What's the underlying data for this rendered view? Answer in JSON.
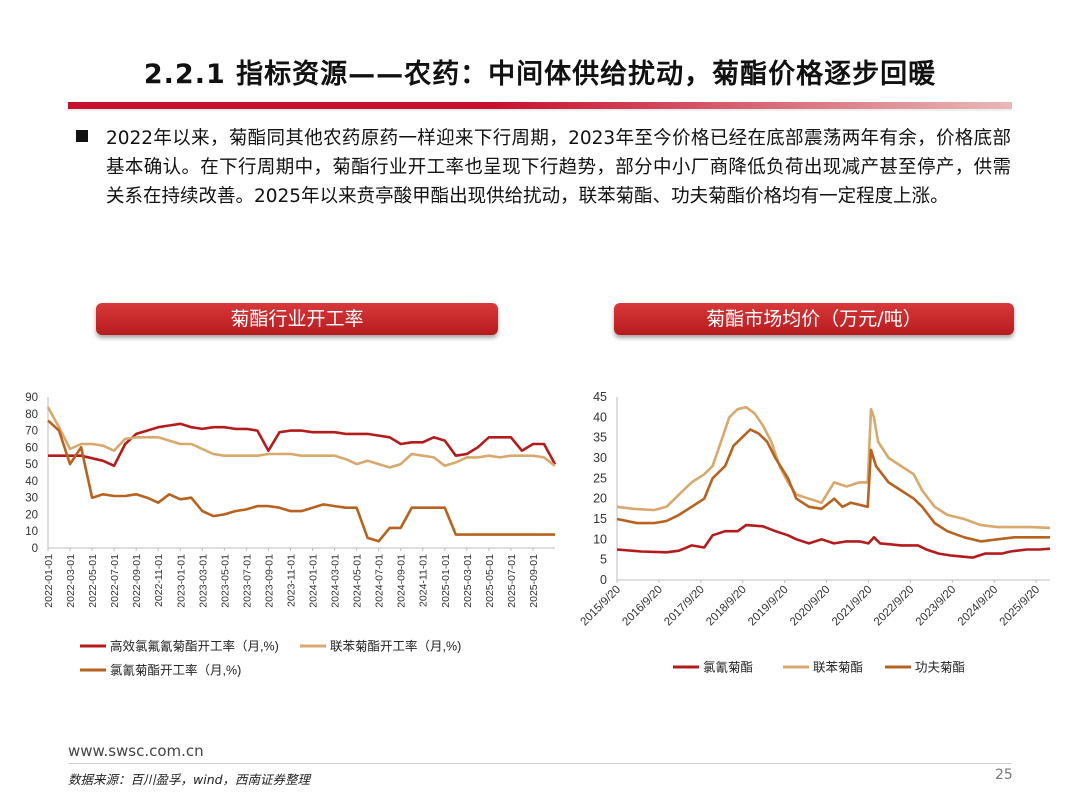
{
  "title": "2.2.1 指标资源——农药：中间体供给扰动，菊酯价格逐步回暖",
  "bullet": "2022年以来，菊酯同其他农药原药一样迎来下行周期，2023年至今价格已经在底部震荡两年有余，价格底部基本确认。在下行周期中，菊酯行业开工率也呈现下行趋势，部分中小厂商降低负荷出现减产甚至停产，供需关系在持续改善。2025年以来贲亭酸甲酯出现供给扰动，联苯菊酯、功夫菊酯价格均有一定程度上涨。",
  "footer": {
    "url": "www.swsc.com.cn",
    "source": "数据来源：百川盈孚，wind，西南证券整理",
    "page": "25"
  },
  "colors": {
    "red": "#b41c1c",
    "gold": "#d9a86c",
    "brown": "#b8621f"
  },
  "chart_data": [
    {
      "type": "line",
      "title": "菊酯行业开工率",
      "ylim": [
        0,
        90
      ],
      "yticks": [
        "0",
        "10",
        "20",
        "30",
        "40",
        "50",
        "60",
        "70",
        "80",
        "90"
      ],
      "xticks": [
        "2022-01-01",
        "2022-03-01",
        "2022-05-01",
        "2022-07-01",
        "2022-09-01",
        "2022-11-01",
        "2023-01-01",
        "2023-03-01",
        "2023-05-01",
        "2023-07-01",
        "2023-09-01",
        "2023-11-01",
        "2024-01-01",
        "2024-03-01",
        "2024-05-01",
        "2024-07-01",
        "2024-09-01",
        "2024-11-01",
        "2025-01-01",
        "2025-03-01",
        "2025-05-01",
        "2025-07-01",
        "2025-09-01"
      ],
      "x_months": 45,
      "series": [
        {
          "name": "高效氯氟氰菊酯开工率（月,%)",
          "color": "red",
          "values": [
            [
              0,
              55
            ],
            [
              3,
              55
            ],
            [
              5,
              52
            ],
            [
              6,
              49
            ],
            [
              7,
              62
            ],
            [
              8,
              68
            ],
            [
              9,
              70
            ],
            [
              10,
              72
            ],
            [
              11,
              73
            ],
            [
              12,
              74
            ],
            [
              13,
              72
            ],
            [
              14,
              71
            ],
            [
              15,
              72
            ],
            [
              16,
              72
            ],
            [
              17,
              71
            ],
            [
              18,
              71
            ],
            [
              19,
              70
            ],
            [
              20,
              58
            ],
            [
              21,
              69
            ],
            [
              22,
              70
            ],
            [
              23,
              70
            ],
            [
              24,
              69
            ],
            [
              25,
              69
            ],
            [
              26,
              69
            ],
            [
              27,
              68
            ],
            [
              28,
              68
            ],
            [
              29,
              68
            ],
            [
              30,
              67
            ],
            [
              31,
              66
            ],
            [
              32,
              62
            ],
            [
              33,
              63
            ],
            [
              34,
              63
            ],
            [
              35,
              66
            ],
            [
              36,
              64
            ],
            [
              37,
              55
            ],
            [
              38,
              56
            ],
            [
              39,
              60
            ],
            [
              40,
              66
            ],
            [
              41,
              66
            ],
            [
              42,
              66
            ],
            [
              43,
              58
            ],
            [
              44,
              62
            ],
            [
              45,
              62
            ],
            [
              46,
              50
            ]
          ]
        },
        {
          "name": "联苯菊酯开工率（月,%)",
          "color": "gold",
          "values": [
            [
              0,
              84
            ],
            [
              1,
              72
            ],
            [
              2,
              59
            ],
            [
              3,
              62
            ],
            [
              4,
              62
            ],
            [
              5,
              61
            ],
            [
              6,
              58
            ],
            [
              7,
              65
            ],
            [
              8,
              66
            ],
            [
              9,
              66
            ],
            [
              10,
              66
            ],
            [
              11,
              64
            ],
            [
              12,
              62
            ],
            [
              13,
              62
            ],
            [
              14,
              59
            ],
            [
              15,
              56
            ],
            [
              16,
              55
            ],
            [
              17,
              55
            ],
            [
              18,
              55
            ],
            [
              19,
              55
            ],
            [
              20,
              56
            ],
            [
              21,
              56
            ],
            [
              22,
              56
            ],
            [
              23,
              55
            ],
            [
              24,
              55
            ],
            [
              25,
              55
            ],
            [
              26,
              55
            ],
            [
              27,
              53
            ],
            [
              28,
              50
            ],
            [
              29,
              52
            ],
            [
              30,
              50
            ],
            [
              31,
              48
            ],
            [
              32,
              50
            ],
            [
              33,
              56
            ],
            [
              34,
              55
            ],
            [
              35,
              54
            ],
            [
              36,
              49
            ],
            [
              37,
              51
            ],
            [
              38,
              54
            ],
            [
              39,
              54
            ],
            [
              40,
              55
            ],
            [
              41,
              54
            ],
            [
              42,
              55
            ],
            [
              43,
              55
            ],
            [
              44,
              55
            ],
            [
              45,
              54
            ],
            [
              46,
              49
            ]
          ]
        },
        {
          "name": "氯氰菊酯开工率（月,%)",
          "color": "brown",
          "values": [
            [
              0,
              76
            ],
            [
              1,
              70
            ],
            [
              2,
              50
            ],
            [
              3,
              60
            ],
            [
              4,
              30
            ],
            [
              5,
              32
            ],
            [
              6,
              31
            ],
            [
              7,
              31
            ],
            [
              8,
              32
            ],
            [
              9,
              30
            ],
            [
              10,
              27
            ],
            [
              11,
              32
            ],
            [
              12,
              29
            ],
            [
              13,
              30
            ],
            [
              14,
              22
            ],
            [
              15,
              19
            ],
            [
              16,
              20
            ],
            [
              17,
              22
            ],
            [
              18,
              23
            ],
            [
              19,
              25
            ],
            [
              20,
              25
            ],
            [
              21,
              24
            ],
            [
              22,
              22
            ],
            [
              23,
              22
            ],
            [
              24,
              24
            ],
            [
              25,
              26
            ],
            [
              26,
              25
            ],
            [
              27,
              24
            ],
            [
              28,
              24
            ],
            [
              29,
              6
            ],
            [
              30,
              4
            ],
            [
              31,
              12
            ],
            [
              32,
              12
            ],
            [
              33,
              24
            ],
            [
              34,
              24
            ],
            [
              35,
              24
            ],
            [
              36,
              24
            ],
            [
              37,
              8
            ],
            [
              38,
              8
            ],
            [
              39,
              8
            ],
            [
              40,
              8
            ],
            [
              41,
              8
            ],
            [
              42,
              8
            ],
            [
              43,
              8
            ],
            [
              44,
              8
            ],
            [
              45,
              8
            ],
            [
              46,
              8
            ]
          ]
        }
      ]
    },
    {
      "type": "line",
      "title": "菊酯市场均价（万元/吨）",
      "ylim": [
        0,
        45
      ],
      "yticks": [
        "0",
        "5",
        "10",
        "15",
        "20",
        "25",
        "30",
        "35",
        "40",
        "45"
      ],
      "xticks": [
        "2015/9/20",
        "2016/9/20",
        "2017/9/20",
        "2018/9/20",
        "2019/9/20",
        "2020/9/20",
        "2021/9/20",
        "2022/9/20",
        "2023/9/20",
        "2024/9/20",
        "2025/9/20"
      ],
      "series": [
        {
          "name": "氯氰菊酯",
          "color": "red",
          "values": [
            [
              2015.72,
              7.5
            ],
            [
              2016.3,
              7
            ],
            [
              2016.9,
              6.8
            ],
            [
              2017.2,
              7.2
            ],
            [
              2017.5,
              8.5
            ],
            [
              2017.8,
              8
            ],
            [
              2018.0,
              11
            ],
            [
              2018.3,
              12
            ],
            [
              2018.6,
              12
            ],
            [
              2018.8,
              13.5
            ],
            [
              2019.2,
              13.2
            ],
            [
              2019.5,
              12
            ],
            [
              2019.8,
              11
            ],
            [
              2020.0,
              10
            ],
            [
              2020.3,
              9
            ],
            [
              2020.6,
              10
            ],
            [
              2020.9,
              9
            ],
            [
              2021.2,
              9.5
            ],
            [
              2021.5,
              9.5
            ],
            [
              2021.72,
              9
            ],
            [
              2021.85,
              10.5
            ],
            [
              2022.0,
              9
            ],
            [
              2022.5,
              8.5
            ],
            [
              2022.9,
              8.5
            ],
            [
              2023.1,
              7.5
            ],
            [
              2023.4,
              6.5
            ],
            [
              2023.7,
              6
            ],
            [
              2024.2,
              5.5
            ],
            [
              2024.5,
              6.5
            ],
            [
              2024.9,
              6.5
            ],
            [
              2025.1,
              7
            ],
            [
              2025.5,
              7.5
            ],
            [
              2025.8,
              7.5
            ],
            [
              2026.05,
              7.7
            ]
          ]
        },
        {
          "name": "联苯菊酯",
          "color": "gold",
          "values": [
            [
              2015.72,
              18
            ],
            [
              2016.1,
              17.5
            ],
            [
              2016.6,
              17.2
            ],
            [
              2016.9,
              18
            ],
            [
              2017.1,
              20
            ],
            [
              2017.3,
              22
            ],
            [
              2017.5,
              24
            ],
            [
              2017.8,
              26
            ],
            [
              2018.0,
              28
            ],
            [
              2018.2,
              34
            ],
            [
              2018.4,
              40
            ],
            [
              2018.6,
              42
            ],
            [
              2018.8,
              42.5
            ],
            [
              2019.0,
              41
            ],
            [
              2019.2,
              38
            ],
            [
              2019.4,
              34
            ],
            [
              2019.6,
              28
            ],
            [
              2019.8,
              24
            ],
            [
              2020.0,
              21
            ],
            [
              2020.3,
              20
            ],
            [
              2020.6,
              19
            ],
            [
              2020.9,
              24
            ],
            [
              2021.2,
              23
            ],
            [
              2021.5,
              24
            ],
            [
              2021.7,
              24
            ],
            [
              2021.78,
              42
            ],
            [
              2021.85,
              40
            ],
            [
              2021.95,
              34
            ],
            [
              2022.2,
              30
            ],
            [
              2022.5,
              28
            ],
            [
              2022.8,
              26
            ],
            [
              2023.0,
              22
            ],
            [
              2023.3,
              18
            ],
            [
              2023.6,
              16
            ],
            [
              2024.0,
              15
            ],
            [
              2024.4,
              13.5
            ],
            [
              2024.8,
              13
            ],
            [
              2025.2,
              13
            ],
            [
              2025.6,
              13
            ],
            [
              2026.05,
              12.8
            ]
          ]
        },
        {
          "name": "功夫菊酯",
          "color": "brown",
          "values": [
            [
              2015.72,
              15
            ],
            [
              2016.2,
              14
            ],
            [
              2016.6,
              14
            ],
            [
              2016.9,
              14.5
            ],
            [
              2017.2,
              16
            ],
            [
              2017.5,
              18
            ],
            [
              2017.8,
              20
            ],
            [
              2018.0,
              25
            ],
            [
              2018.3,
              28
            ],
            [
              2018.5,
              33
            ],
            [
              2018.7,
              35
            ],
            [
              2018.9,
              37
            ],
            [
              2019.1,
              36
            ],
            [
              2019.3,
              34
            ],
            [
              2019.5,
              30
            ],
            [
              2019.8,
              25
            ],
            [
              2020.0,
              20
            ],
            [
              2020.3,
              18
            ],
            [
              2020.6,
              17.5
            ],
            [
              2020.9,
              20
            ],
            [
              2021.1,
              18
            ],
            [
              2021.3,
              19
            ],
            [
              2021.5,
              18.5
            ],
            [
              2021.7,
              18
            ],
            [
              2021.78,
              32
            ],
            [
              2021.9,
              28
            ],
            [
              2022.2,
              24
            ],
            [
              2022.5,
              22
            ],
            [
              2022.8,
              20
            ],
            [
              2023.0,
              18
            ],
            [
              2023.3,
              14
            ],
            [
              2023.6,
              12
            ],
            [
              2024.0,
              10.5
            ],
            [
              2024.4,
              9.5
            ],
            [
              2024.8,
              10
            ],
            [
              2025.2,
              10.5
            ],
            [
              2025.6,
              10.5
            ],
            [
              2026.05,
              10.5
            ]
          ]
        }
      ]
    }
  ]
}
